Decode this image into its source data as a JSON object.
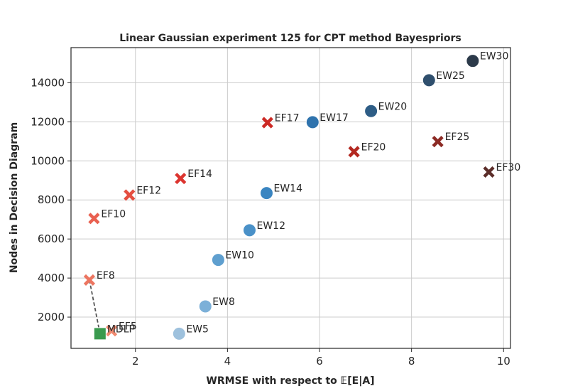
{
  "chart_data": {
    "type": "scatter",
    "title": "Linear Gaussian experiment 125 for CPT method Bayespriors",
    "xlabel": "WRMSE with respect to 𝔼[E|A]",
    "ylabel": "Nodes in Decision Diagram",
    "xlim": [
      0.6,
      10.15
    ],
    "ylim": [
      400,
      15800
    ],
    "xticks": [
      2,
      4,
      6,
      8,
      10
    ],
    "yticks": [
      2000,
      4000,
      6000,
      8000,
      10000,
      12000,
      14000
    ],
    "grid": true,
    "series": [
      {
        "marker": "circle",
        "points": [
          {
            "label": "EW5",
            "x": 2.95,
            "y": 1150,
            "color": "#9ec1dd"
          },
          {
            "label": "EW8",
            "x": 3.52,
            "y": 2550,
            "color": "#7cb0d8"
          },
          {
            "label": "EW10",
            "x": 3.8,
            "y": 4930,
            "color": "#5f9fcf"
          },
          {
            "label": "EW12",
            "x": 4.48,
            "y": 6450,
            "color": "#4a91c8"
          },
          {
            "label": "EW14",
            "x": 4.85,
            "y": 8350,
            "color": "#3a85c1"
          },
          {
            "label": "EW17",
            "x": 5.85,
            "y": 11980,
            "color": "#2f73ad"
          },
          {
            "label": "EW20",
            "x": 7.12,
            "y": 12550,
            "color": "#2e5d86"
          },
          {
            "label": "EW25",
            "x": 8.38,
            "y": 14130,
            "color": "#2f4f6d"
          },
          {
            "label": "EW30",
            "x": 9.33,
            "y": 15120,
            "color": "#2c3a4a"
          }
        ]
      },
      {
        "marker": "x",
        "points": [
          {
            "label": "EF5",
            "x": 1.48,
            "y": 1300,
            "color": "#f08a70"
          },
          {
            "label": "EF8",
            "x": 1.0,
            "y": 3900,
            "color": "#ec7560"
          },
          {
            "label": "EF10",
            "x": 1.1,
            "y": 7050,
            "color": "#e96050"
          },
          {
            "label": "EF12",
            "x": 1.87,
            "y": 8250,
            "color": "#e44e40"
          },
          {
            "label": "EF14",
            "x": 2.98,
            "y": 9100,
            "color": "#dc3530"
          },
          {
            "label": "EF17",
            "x": 4.87,
            "y": 11960,
            "color": "#cc2a25"
          },
          {
            "label": "EF20",
            "x": 6.75,
            "y": 10470,
            "color": "#b32820"
          },
          {
            "label": "EF25",
            "x": 8.57,
            "y": 10990,
            "color": "#8c2a24"
          },
          {
            "label": "EF30",
            "x": 9.68,
            "y": 9430,
            "color": "#5c2e2a"
          }
        ]
      },
      {
        "marker": "square",
        "points": [
          {
            "label": "MDLP",
            "x": 1.23,
            "y": 1150,
            "color": "#3a9a4e"
          }
        ]
      }
    ],
    "connector": {
      "from": "EF8",
      "to": "MDLP",
      "style": "dashed",
      "color": "#555555"
    }
  }
}
